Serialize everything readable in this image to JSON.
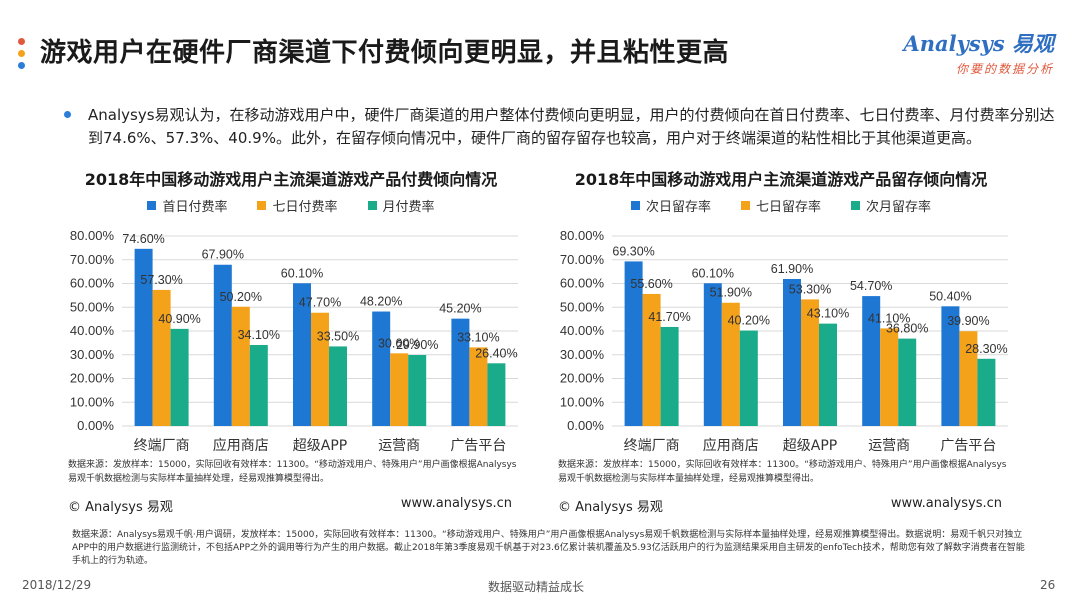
{
  "page": {
    "title": "游戏用户在硬件厂商渠道下付费倾向更明显，并且粘性更高",
    "summary": "Analysys易观认为，在移动游戏用户中，硬件厂商渠道的用户整体付费倾向更明显，用户的付费倾向在首日付费率、七日付费率、月付费率分别达到74.6%、57.3%、40.9%。此外，在留存倾向情况中，硬件厂商的留存留存也较高，用户对于终端渠道的粘性相比于其他渠道更高。",
    "logo_main": "Analysys 易观",
    "logo_sub": "你要的数据分析",
    "footnote": "数据来源：Analysys易观千帆·用户调研，发放样本：15000，实际回收有效样本：11300。“移动游戏用户、特殊用户”用户画像根据Analysys易观千帆数据检测与实际样本量抽样处理，经易观推算模型得出。数据说明：易观千帆只对独立APP中的用户数据进行监测统计，不包括APP之外的调用等行为产生的用户数据。截止2018年第3季度易观千帆基于对23.6亿累计装机覆盖及5.93亿活跃用户的行为监测结果采用自主研发的enfoTech技术，帮助您有效了解数字消费者在智能手机上的行为轨迹。",
    "footer_date": "2018/12/29",
    "footer_center": "数据驱动精益成长",
    "footer_page": "26",
    "colors": {
      "blue": "#1f77d4",
      "orange": "#f5a21b",
      "teal": "#1aab8a",
      "dot1": "#e1583c",
      "dot2": "#f5a21b",
      "dot3": "#2a7dd9"
    }
  },
  "chart_data": [
    {
      "type": "bar",
      "title": "2018年中国移动游戏用户主流渠道游戏产品付费倾向情况",
      "categories": [
        "终端厂商",
        "应用商店",
        "超级APP",
        "运营商",
        "广告平台"
      ],
      "ylim": [
        0,
        80
      ],
      "yticks": [
        "0.00%",
        "10.00%",
        "20.00%",
        "30.00%",
        "40.00%",
        "50.00%",
        "60.00%",
        "70.00%",
        "80.00%"
      ],
      "legend": "top",
      "grid": true,
      "series": [
        {
          "name": "首日付费率",
          "color": "#1f77d4",
          "values": [
            74.6,
            67.9,
            60.1,
            48.2,
            45.2
          ],
          "labels": [
            "74.60%",
            "67.90%",
            "60.10%",
            "48.20%",
            "45.20%"
          ]
        },
        {
          "name": "七日付费率",
          "color": "#f5a21b",
          "values": [
            57.3,
            50.2,
            47.7,
            30.6,
            33.1
          ],
          "labels": [
            "57.30%",
            "50.20%",
            "47.70%",
            "30.60%",
            "33.10%"
          ]
        },
        {
          "name": "月付费率",
          "color": "#1aab8a",
          "values": [
            40.9,
            34.1,
            33.5,
            29.9,
            26.4
          ],
          "labels": [
            "40.90%",
            "34.10%",
            "33.50%",
            "29.90%",
            "26.40%"
          ]
        }
      ],
      "source": "数据来源：发放样本：15000，实际回收有效样本：11300。“移动游戏用户、特殊用户”用户画像根据Analysys易观千帆数据检测与实际样本量抽样处理，经易观推算模型得出。",
      "copyright": "© Analysys 易观",
      "website": "www.analysys.cn"
    },
    {
      "type": "bar",
      "title": "2018年中国移动游戏用户主流渠道游戏产品留存倾向情况",
      "categories": [
        "终端厂商",
        "应用商店",
        "超级APP",
        "运营商",
        "广告平台"
      ],
      "ylim": [
        0,
        80
      ],
      "yticks": [
        "0.00%",
        "10.00%",
        "20.00%",
        "30.00%",
        "40.00%",
        "50.00%",
        "60.00%",
        "70.00%",
        "80.00%"
      ],
      "legend": "top",
      "grid": true,
      "series": [
        {
          "name": "次日留存率",
          "color": "#1f77d4",
          "values": [
            69.3,
            60.1,
            61.9,
            54.7,
            50.4
          ],
          "labels": [
            "69.30%",
            "60.10%",
            "61.90%",
            "54.70%",
            "50.40%"
          ]
        },
        {
          "name": "七日留存率",
          "color": "#f5a21b",
          "values": [
            55.6,
            51.9,
            53.3,
            41.1,
            39.9
          ],
          "labels": [
            "55.60%",
            "51.90%",
            "53.30%",
            "41.10%",
            "39.90%"
          ]
        },
        {
          "name": "次月留存率",
          "color": "#1aab8a",
          "values": [
            41.7,
            40.2,
            43.1,
            36.8,
            28.3
          ],
          "labels": [
            "41.70%",
            "40.20%",
            "43.10%",
            "36.80%",
            "28.30%"
          ]
        }
      ],
      "source": "数据来源：发放样本：15000，实际回收有效样本：11300。“移动游戏用户、特殊用户”用户画像根据Analysys易观千帆数据检测与实际样本量抽样处理，经易观推算模型得出。",
      "copyright": "© Analysys 易观",
      "website": "www.analysys.cn"
    }
  ]
}
